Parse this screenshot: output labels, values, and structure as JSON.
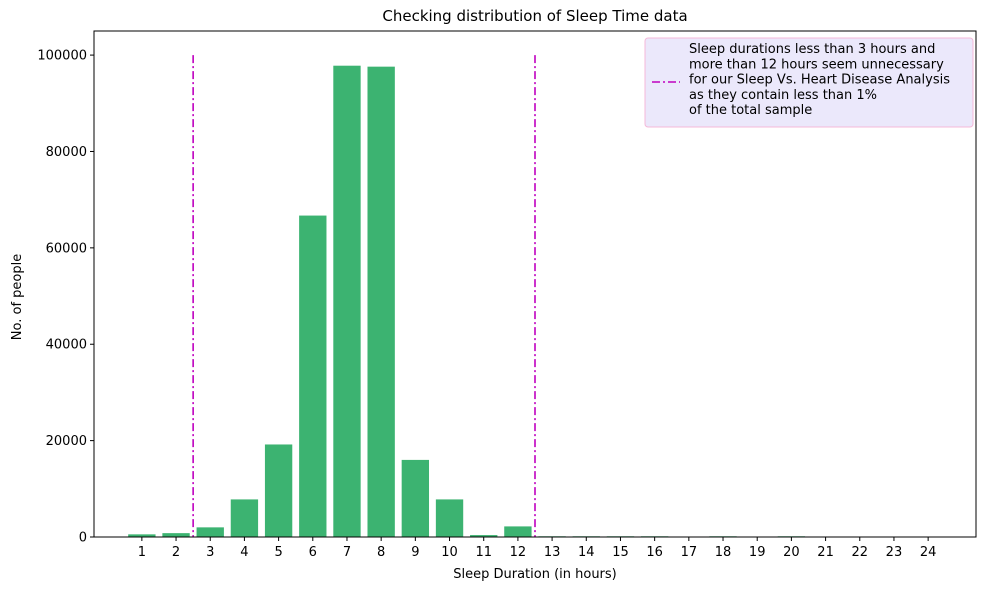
{
  "chart_data": {
    "type": "bar",
    "title": "Checking distribution of Sleep Time data",
    "xlabel": "Sleep Duration (in hours)",
    "ylabel": "No. of people",
    "categories": [
      1,
      2,
      3,
      4,
      5,
      6,
      7,
      8,
      9,
      10,
      11,
      12,
      13,
      14,
      15,
      16,
      17,
      18,
      19,
      20,
      21,
      22,
      23,
      24
    ],
    "values": [
      550,
      800,
      2000,
      7800,
      19200,
      66700,
      97800,
      97600,
      16000,
      7800,
      400,
      2200,
      150,
      150,
      150,
      150,
      40,
      150,
      10,
      150,
      5,
      5,
      5,
      5
    ],
    "ylim": [
      0,
      105000
    ],
    "yticks": [
      0,
      20000,
      40000,
      60000,
      80000,
      100000
    ],
    "bar_color": "#3cb371",
    "threshold_lines": {
      "x": [
        2.5,
        12.5
      ],
      "y_top": 100000,
      "color": "#bf00bf",
      "style": "dash-dot"
    },
    "legend": {
      "placement": "top-right",
      "background": "#ebe8fb",
      "border": "#f5b8d8",
      "lines": [
        "Sleep durations less than 3 hours and",
        "more than 12 hours seem unnecessary",
        "for our Sleep Vs. Heart Disease Analysis",
        "as they contain less than 1%",
        "of the total sample"
      ]
    },
    "grid": false
  }
}
